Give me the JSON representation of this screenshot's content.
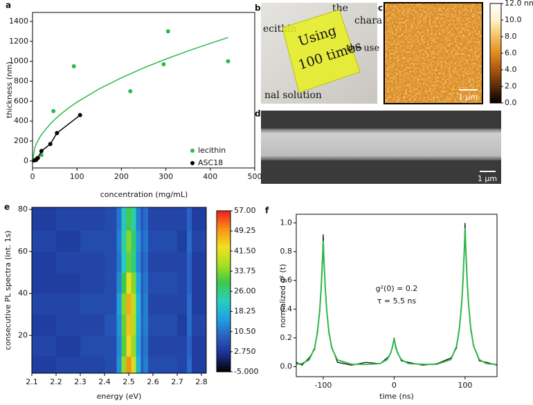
{
  "chart_data": [
    {
      "type": "scatter",
      "label": "a",
      "x_label": "concentration (mg/mL)",
      "y_label": "thickness (nm)",
      "xlim": [
        0,
        500
      ],
      "ylim": [
        -70,
        1490
      ],
      "xticks": [
        0,
        100,
        200,
        300,
        400,
        500
      ],
      "yticks": [
        0,
        200,
        400,
        600,
        800,
        1000,
        1200,
        1400
      ],
      "legend": "lower right",
      "series": [
        {
          "name": "lecithin",
          "color": "#2db84a",
          "mode": "markers",
          "x": [
            5,
            10,
            20,
            47,
            93,
            220,
            295,
            305,
            440
          ],
          "values": [
            10,
            30,
            60,
            500,
            950,
            700,
            970,
            1300,
            1000
          ]
        },
        {
          "name": "ASC18",
          "color": "#000000",
          "mode": "lines+markers",
          "x": [
            3,
            8,
            12,
            20,
            40,
            55,
            107
          ],
          "values": [
            5,
            10,
            30,
            100,
            170,
            280,
            460
          ]
        },
        {
          "color": "#2db84a",
          "mode": "lines",
          "x": [
            0,
            5,
            10,
            20,
            40,
            60,
            80,
            100,
            150,
            200,
            250,
            300,
            350,
            400,
            440
          ],
          "values": [
            0,
            132,
            187,
            264,
            373,
            457,
            528,
            590,
            723,
            834,
            933,
            1022,
            1104,
            1180,
            1238
          ]
        }
      ]
    },
    {
      "type": "heatmap",
      "label": "e",
      "x_label": "energy (eV)",
      "y_label": "consecutive PL spectra (int. 1s)",
      "xlim": [
        2.1,
        2.82
      ],
      "ylim": [
        2,
        81
      ],
      "xticks": [
        2.1,
        2.2,
        2.3,
        2.4,
        2.5,
        2.6,
        2.7,
        2.8
      ],
      "yticks": [
        20,
        40,
        60,
        80
      ],
      "xbins": [
        2.1,
        2.2,
        2.3,
        2.4,
        2.45,
        2.47,
        2.49,
        2.51,
        2.53,
        2.55,
        2.56,
        2.58,
        2.7,
        2.74,
        2.76,
        2.82
      ],
      "ybins": [
        2,
        10,
        20,
        30,
        40,
        50,
        60,
        70,
        81
      ],
      "values": [
        [
          4,
          5,
          5,
          6,
          14,
          35,
          50,
          40,
          18,
          8,
          12,
          6,
          5,
          10,
          4
        ],
        [
          5,
          4,
          6,
          6,
          13,
          31,
          44,
          35,
          16,
          8,
          11,
          5,
          5,
          9,
          4
        ],
        [
          4,
          5,
          5,
          7,
          14,
          32,
          46,
          37,
          17,
          9,
          12,
          6,
          4,
          10,
          5
        ],
        [
          5,
          5,
          6,
          6,
          15,
          34,
          48,
          38,
          18,
          8,
          12,
          5,
          5,
          10,
          4
        ],
        [
          4,
          4,
          5,
          6,
          13,
          29,
          42,
          34,
          16,
          8,
          11,
          6,
          5,
          9,
          4
        ],
        [
          4,
          5,
          5,
          6,
          11,
          22,
          32,
          26,
          13,
          7,
          10,
          5,
          5,
          9,
          4
        ],
        [
          5,
          4,
          6,
          6,
          12,
          24,
          34,
          27,
          14,
          8,
          11,
          6,
          4,
          10,
          5
        ],
        [
          4,
          5,
          5,
          6,
          11,
          21,
          30,
          24,
          12,
          7,
          10,
          5,
          5,
          9,
          4
        ]
      ],
      "clim": [
        -5,
        57
      ],
      "colorscale": [
        "#000000",
        "#1b2f8f",
        "#2a5fc4",
        "#1fa3e0",
        "#29cfc0",
        "#3cc84a",
        "#a8e020",
        "#f0e020",
        "#f89018",
        "#f02020"
      ],
      "colorbar_ticks": [
        {
          "value": 57,
          "label": "57.00"
        },
        49.25,
        {
          "value": 41.5,
          "label": "41.50"
        },
        33.75,
        {
          "value": 26,
          "label": "26.00"
        },
        18.25,
        {
          "value": 10.5,
          "label": "10.50"
        },
        {
          "value": 2.75,
          "label": "2.750"
        },
        {
          "value": -5,
          "label": "-5.000"
        }
      ]
    },
    {
      "type": "line",
      "label": "f",
      "x_label": "time (ns)",
      "y_label": "normalized g² (t)",
      "xlim": [
        -138,
        145
      ],
      "ylim": [
        -0.07,
        1.06
      ],
      "xticks": [
        -100,
        0,
        100
      ],
      "yticks": [
        {
          "value": 0,
          "label": "0.0"
        },
        0.2,
        0.4,
        0.6,
        0.8,
        {
          "value": 1,
          "label": "1.0"
        }
      ],
      "annotations": [
        "g²(0) = 0.2",
        "τ = 5.5 ns"
      ],
      "x": [
        -138,
        -130,
        -120,
        -112,
        -108,
        -105,
        -103,
        -101,
        -100,
        -99,
        -97,
        -95,
        -92,
        -88,
        -80,
        -60,
        -40,
        -20,
        -10,
        -5,
        -2,
        0,
        2,
        5,
        10,
        20,
        40,
        60,
        80,
        88,
        92,
        95,
        97,
        99,
        100,
        101,
        103,
        105,
        108,
        112,
        120,
        130,
        145
      ],
      "series": [
        {
          "color": "#000000",
          "values": [
            0.03,
            0.01,
            0.06,
            0.12,
            0.26,
            0.37,
            0.56,
            0.78,
            0.92,
            0.76,
            0.52,
            0.4,
            0.23,
            0.14,
            0.03,
            0.01,
            0.03,
            0.02,
            0.06,
            0.09,
            0.15,
            0.2,
            0.13,
            0.1,
            0.04,
            0.03,
            0.01,
            0.02,
            0.06,
            0.13,
            0.28,
            0.41,
            0.61,
            0.85,
            1,
            0.8,
            0.6,
            0.44,
            0.25,
            0.15,
            0.04,
            0.03,
            0.01
          ]
        },
        {
          "color": "#2db84a",
          "values": [
            0.017,
            0.021,
            0.046,
            0.131,
            0.242,
            0.389,
            0.537,
            0.743,
            0.875,
            0.743,
            0.537,
            0.389,
            0.242,
            0.131,
            0.046,
            0.016,
            0.016,
            0.021,
            0.049,
            0.093,
            0.144,
            0.195,
            0.144,
            0.093,
            0.049,
            0.021,
            0.016,
            0.016,
            0.049,
            0.143,
            0.266,
            0.428,
            0.592,
            0.819,
            0.965,
            0.819,
            0.592,
            0.428,
            0.266,
            0.143,
            0.049,
            0.021,
            0.015
          ]
        }
      ]
    }
  ],
  "photo": {
    "label": "b",
    "printed_text": [
      "the",
      "chara",
      "ecithin",
      "Using",
      "100 times",
      "the use",
      "nal solution"
    ]
  },
  "afm": {
    "label": "c",
    "scale_bar": "1 µm",
    "clim": [
      0,
      12
    ],
    "colorscale": [
      "#000000",
      "#5a2a08",
      "#a8560e",
      "#e08a20",
      "#f4c060",
      "#fdf0c8",
      "#ffffff"
    ],
    "colorbar_ticks": [
      {
        "value": 12,
        "label": "12.0 nm"
      },
      {
        "value": 10,
        "label": "10.0"
      },
      {
        "value": 8,
        "label": "8.0"
      },
      {
        "value": 6,
        "label": "6.0"
      },
      {
        "value": 4,
        "label": "4.0"
      },
      {
        "value": 2,
        "label": "2.0"
      },
      {
        "value": 0,
        "label": "0.0"
      }
    ]
  },
  "sem": {
    "label": "d",
    "scale_bar": "1 µm"
  }
}
